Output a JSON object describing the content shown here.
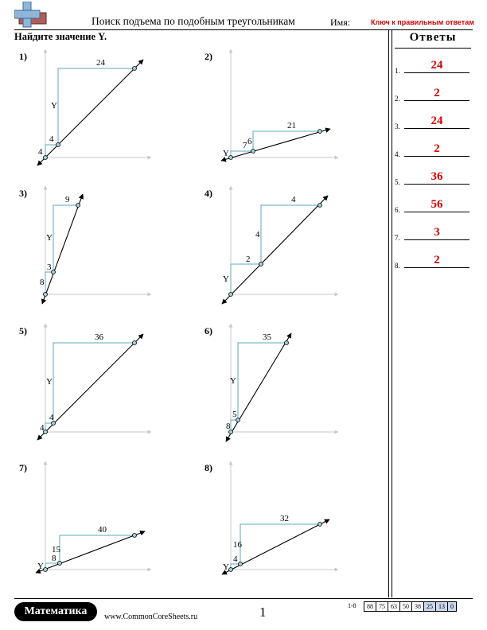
{
  "header": {
    "title": "Поиск подъема по подобным треугольникам",
    "name_label": "Имя:",
    "key_label": "Ключ к правильным ответам"
  },
  "instruction": "Найдите значение Y.",
  "answers": {
    "title": "Ответы",
    "items": [
      {
        "num": "1.",
        "value": "24"
      },
      {
        "num": "2.",
        "value": "2"
      },
      {
        "num": "3.",
        "value": "24"
      },
      {
        "num": "4.",
        "value": "2"
      },
      {
        "num": "5.",
        "value": "36"
      },
      {
        "num": "6.",
        "value": "56"
      },
      {
        "num": "7.",
        "value": "3"
      },
      {
        "num": "8.",
        "value": "2"
      }
    ]
  },
  "problems": [
    {
      "label": "1)",
      "small_run": "4",
      "small_rise": "4",
      "big_run": "24",
      "big_rise": "Y"
    },
    {
      "label": "2)",
      "small_run": "7",
      "small_rise": "Y",
      "big_run": "21",
      "big_rise": "6"
    },
    {
      "label": "3)",
      "small_run": "3",
      "small_rise": "8",
      "big_run": "9",
      "big_rise": "Y"
    },
    {
      "label": "4)",
      "small_run": "2",
      "small_rise": "Y",
      "big_run": "4",
      "big_rise": "4"
    },
    {
      "label": "5)",
      "small_run": "4",
      "small_rise": "4",
      "big_run": "36",
      "big_rise": "Y"
    },
    {
      "label": "6)",
      "small_run": "5",
      "small_rise": "8",
      "big_run": "35",
      "big_rise": "Y"
    },
    {
      "label": "7)",
      "small_run": "8",
      "small_rise": "Y",
      "big_run": "40",
      "big_rise": "15"
    },
    {
      "label": "8)",
      "small_run": "4",
      "small_rise": "Y",
      "big_run": "32",
      "big_rise": "16"
    }
  ],
  "footer": {
    "brand": "Математика",
    "website": "www.CommonCoreSheets.ru",
    "page_number": "1",
    "score_range": "1-8",
    "scores": [
      "88",
      "75",
      "63",
      "50",
      "38",
      "25",
      "13",
      "0"
    ]
  }
}
